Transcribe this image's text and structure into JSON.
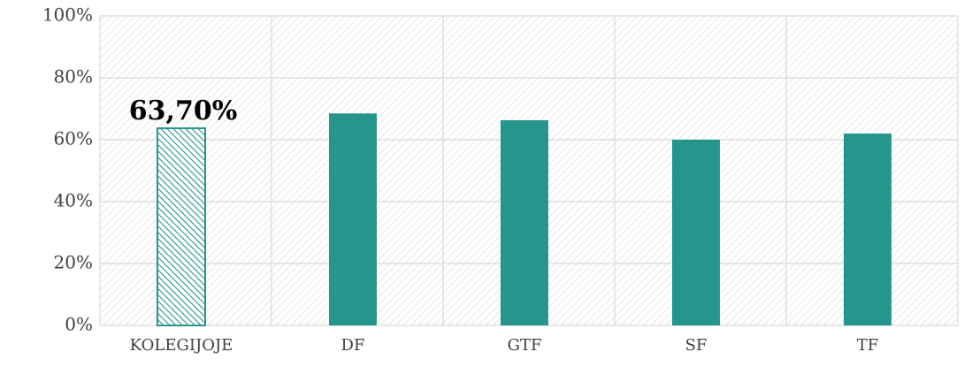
{
  "chart_data": {
    "type": "bar",
    "categories": [
      "KOLEGIJOJE",
      "DF",
      "GTF",
      "SF",
      "TF"
    ],
    "values": [
      63.7,
      68.5,
      66.3,
      60,
      62
    ],
    "value_labels": [
      "63,70%",
      null,
      null,
      null,
      null
    ],
    "hatched": [
      true,
      false,
      false,
      false,
      false
    ],
    "color": "#26968c",
    "ylim": [
      0,
      100
    ],
    "yticks": [
      {
        "value": 0,
        "label": "0%"
      },
      {
        "value": 20,
        "label": "20%"
      },
      {
        "value": 40,
        "label": "40%"
      },
      {
        "value": 60,
        "label": "60%"
      },
      {
        "value": 80,
        "label": "80%"
      },
      {
        "value": 100,
        "label": "100%"
      }
    ],
    "grid": true
  }
}
